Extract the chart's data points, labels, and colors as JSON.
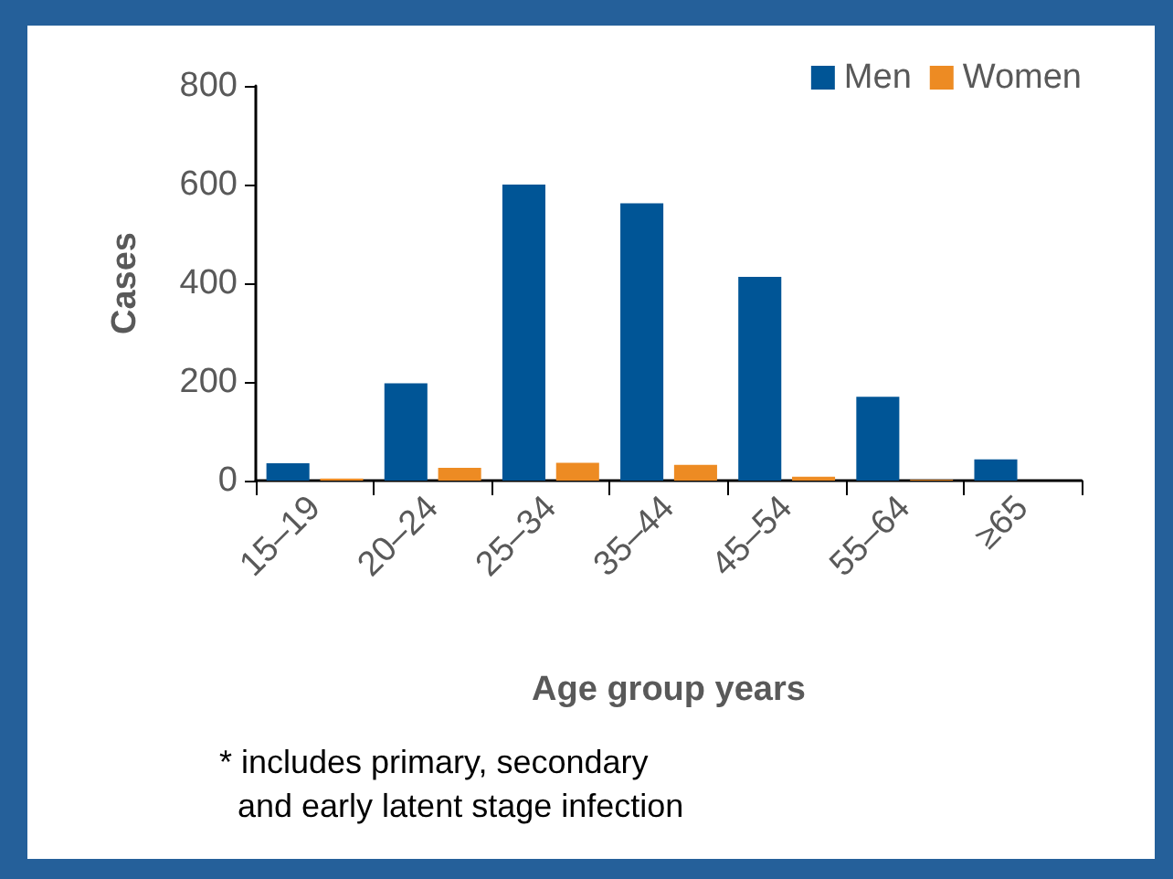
{
  "chart_data": {
    "type": "bar",
    "ylabel": "Cases",
    "xlabel": "Age group years",
    "categories": [
      "15–19",
      "20–24",
      "25–34",
      "35–44",
      "45–54",
      "55–64",
      "≥65"
    ],
    "series": [
      {
        "name": "Men",
        "color": "#005596",
        "values": [
          35,
          197,
          600,
          562,
          413,
          170,
          43
        ]
      },
      {
        "name": "Women",
        "color": "#ed8b23",
        "values": [
          4,
          26,
          36,
          32,
          8,
          2,
          0
        ]
      }
    ],
    "ylim": [
      0,
      800
    ],
    "yticks": [
      0,
      200,
      400,
      600,
      800
    ],
    "grid": false,
    "legend": "top right",
    "annotations": [
      "* includes primary, secondary\n  and early latent stage infection"
    ]
  }
}
